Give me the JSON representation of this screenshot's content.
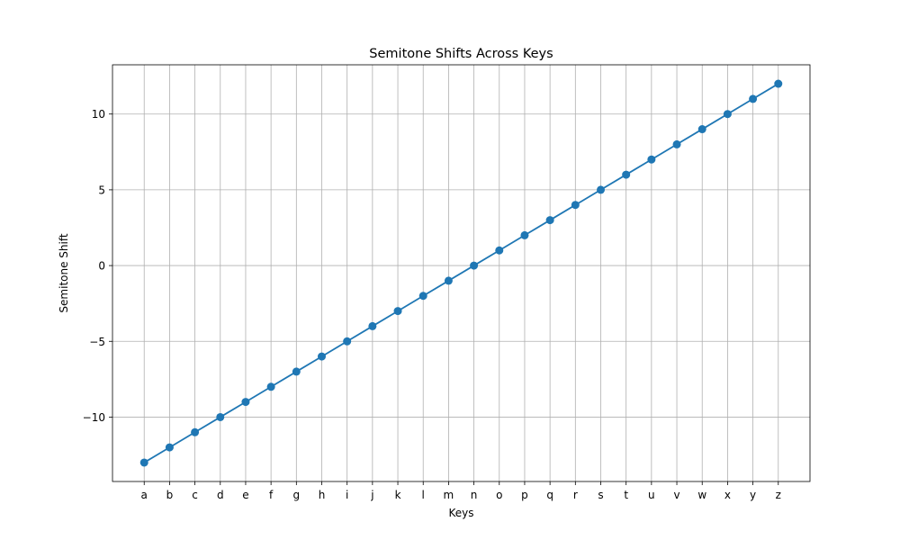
{
  "chart_data": {
    "type": "line",
    "title": "Semitone Shifts Across Keys",
    "xlabel": "Keys",
    "ylabel": "Semitone Shift",
    "categories": [
      "a",
      "b",
      "c",
      "d",
      "e",
      "f",
      "g",
      "h",
      "i",
      "j",
      "k",
      "l",
      "m",
      "n",
      "o",
      "p",
      "q",
      "r",
      "s",
      "t",
      "u",
      "v",
      "w",
      "x",
      "y",
      "z"
    ],
    "series": [
      {
        "values": [
          -13,
          -12,
          -11,
          -10,
          -9,
          -8,
          -7,
          -6,
          -5,
          -4,
          -3,
          -2,
          -1,
          0,
          1,
          2,
          3,
          4,
          5,
          6,
          7,
          8,
          9,
          10,
          11,
          12
        ],
        "color": "#1f77b4",
        "marker": "circle"
      }
    ],
    "ylim": [
      -14.25,
      13.25
    ],
    "yticks": [
      -10,
      -5,
      0,
      5,
      10
    ],
    "ytick_labels": [
      "−10",
      "−5",
      "0",
      "5",
      "10"
    ],
    "grid": true,
    "grid_color": "#b0b0b0"
  }
}
